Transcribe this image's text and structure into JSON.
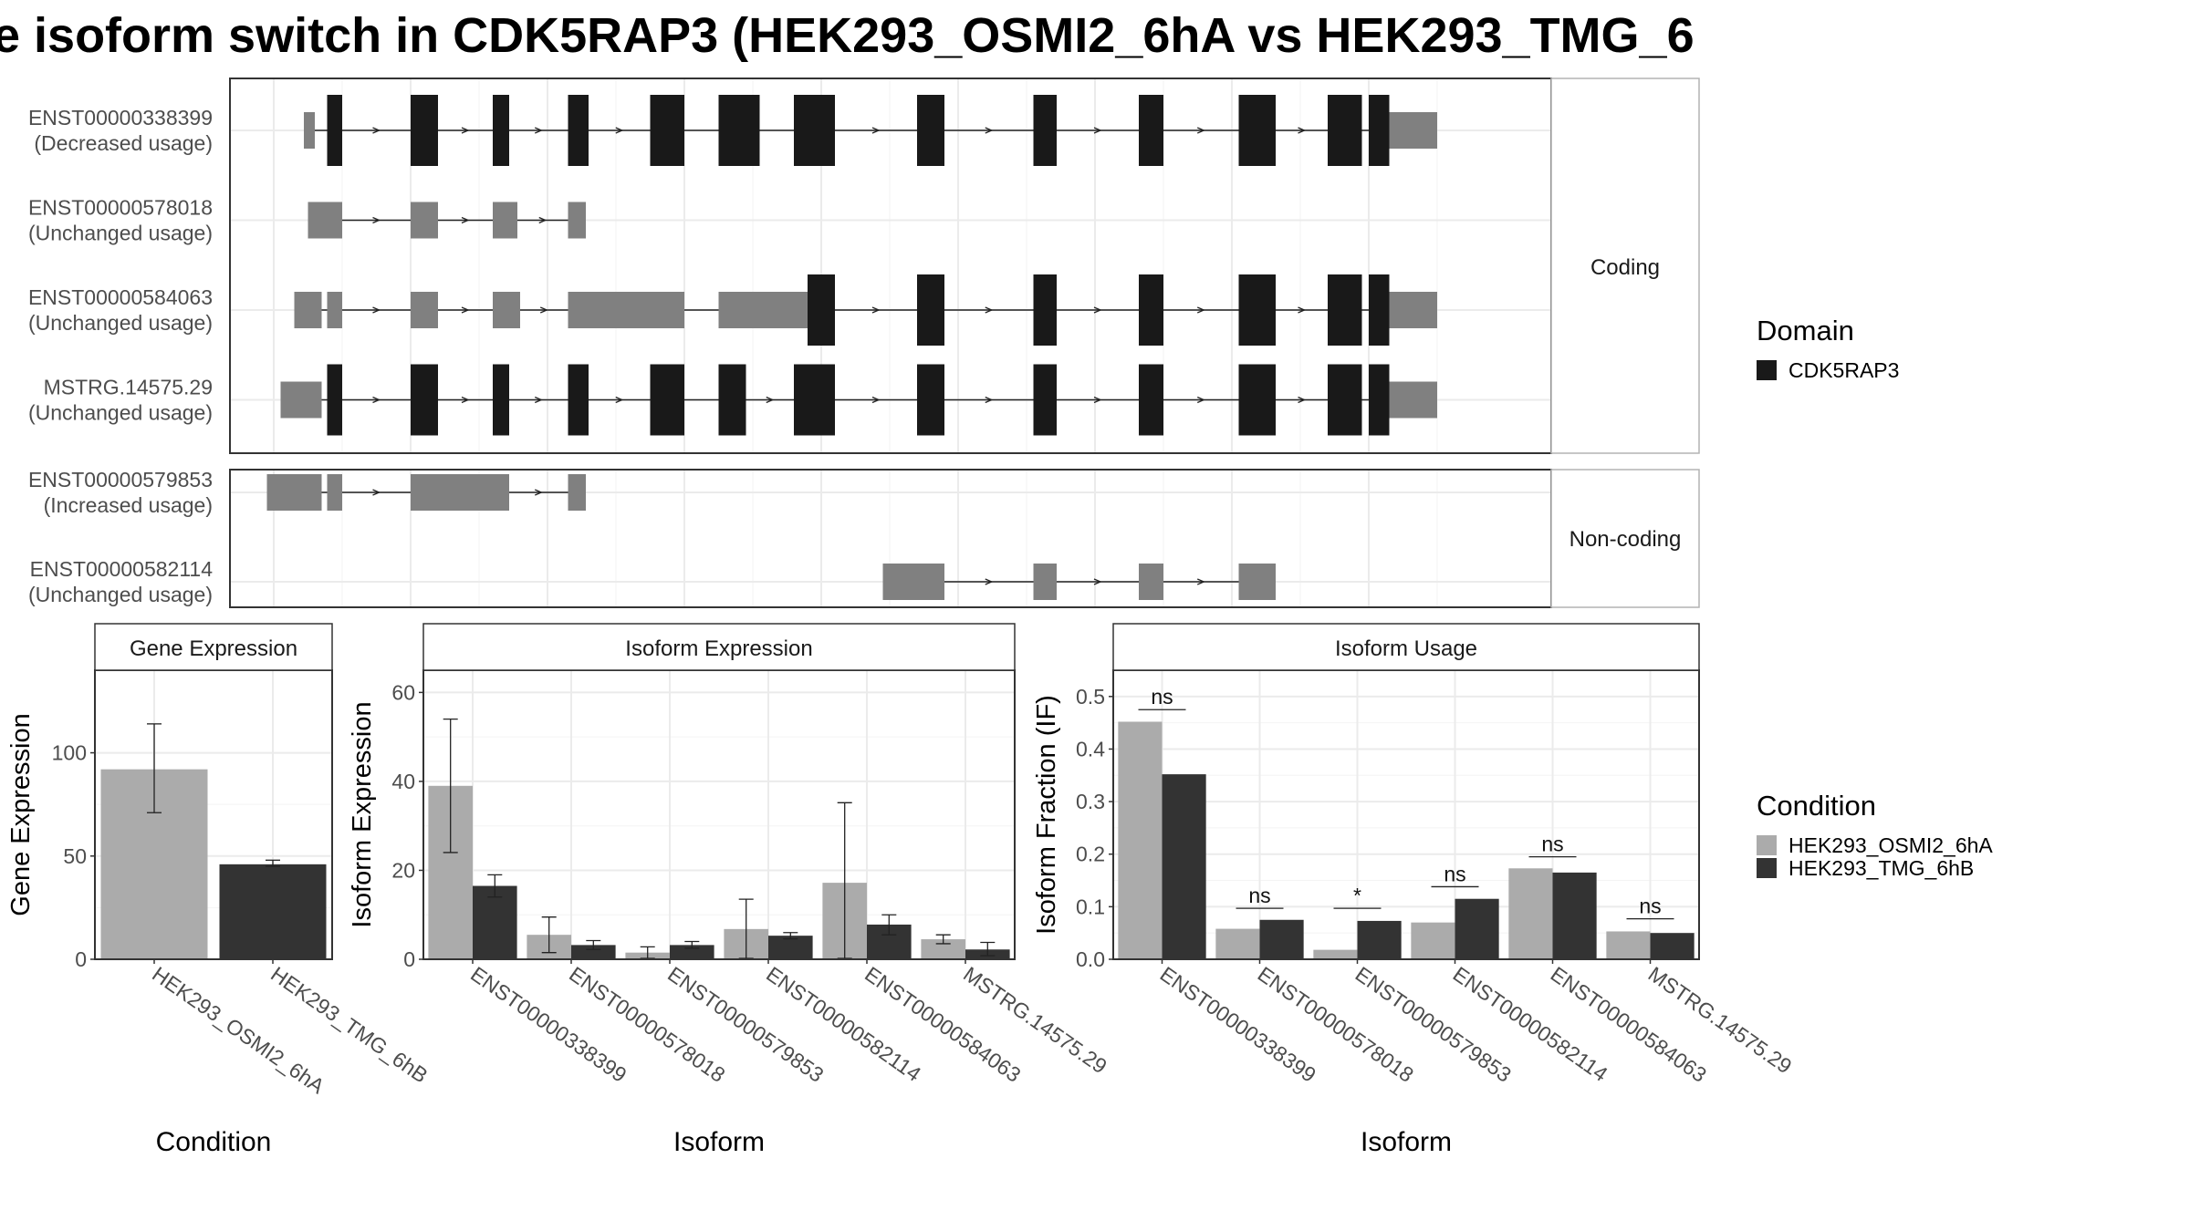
{
  "title": "e isoform switch in CDK5RAP3 (HEK293_OSMI2_6hA vs HEK293_TMG_6",
  "structure": {
    "coding_label": "Coding",
    "noncoding_label": "Non-coding",
    "legend_title": "Domain",
    "legend_item": "CDK5RAP3",
    "transcripts": [
      {
        "id": "ENST00000338399",
        "usage": "(Decreased usage)",
        "group": "Coding",
        "exons": [
          [
            0.22,
            0.28,
            "utr"
          ],
          [
            0.28,
            0.3,
            "utr"
          ],
          [
            0.39,
            0.5,
            "cds"
          ],
          [
            1.0,
            1.2,
            "cds"
          ],
          [
            1.6,
            1.72,
            "cds"
          ],
          [
            2.15,
            2.3,
            "cds"
          ],
          [
            2.75,
            3.0,
            "cds"
          ],
          [
            3.25,
            3.55,
            "cds"
          ],
          [
            3.8,
            4.1,
            "cds"
          ],
          [
            4.7,
            4.9,
            "cds"
          ],
          [
            5.55,
            5.72,
            "cds"
          ],
          [
            6.32,
            6.5,
            "cds"
          ],
          [
            7.05,
            7.32,
            "cds"
          ],
          [
            7.7,
            7.95,
            "cds"
          ],
          [
            8.0,
            8.15,
            "cds"
          ],
          [
            8.15,
            8.5,
            "utr"
          ]
        ]
      },
      {
        "id": "ENST00000578018",
        "usage": "(Unchanged usage)",
        "group": "Coding",
        "exons": [
          [
            0.25,
            0.5,
            "utr"
          ],
          [
            1.0,
            1.2,
            "utr"
          ],
          [
            1.6,
            1.78,
            "utr"
          ],
          [
            2.15,
            2.28,
            "utr"
          ]
        ]
      },
      {
        "id": "ENST00000584063",
        "usage": "(Unchanged usage)",
        "group": "Coding",
        "exons": [
          [
            0.15,
            0.35,
            "utr"
          ],
          [
            0.39,
            0.5,
            "utr"
          ],
          [
            1.0,
            1.2,
            "utr"
          ],
          [
            1.6,
            1.8,
            "utr"
          ],
          [
            2.15,
            3.0,
            "utr"
          ],
          [
            3.25,
            3.9,
            "utr"
          ],
          [
            3.9,
            4.1,
            "cds"
          ],
          [
            4.7,
            4.9,
            "cds"
          ],
          [
            5.55,
            5.72,
            "cds"
          ],
          [
            6.32,
            6.5,
            "cds"
          ],
          [
            7.05,
            7.32,
            "cds"
          ],
          [
            7.7,
            7.95,
            "cds"
          ],
          [
            8.0,
            8.15,
            "cds"
          ],
          [
            8.15,
            8.5,
            "utr"
          ]
        ]
      },
      {
        "id": "MSTRG.14575.29",
        "usage": "(Unchanged usage)",
        "group": "Coding",
        "exons": [
          [
            0.05,
            0.35,
            "utr"
          ],
          [
            0.39,
            0.5,
            "cds"
          ],
          [
            1.0,
            1.2,
            "cds"
          ],
          [
            1.6,
            1.72,
            "cds"
          ],
          [
            2.15,
            2.3,
            "cds"
          ],
          [
            2.75,
            3.0,
            "cds"
          ],
          [
            3.25,
            3.45,
            "cds"
          ],
          [
            3.8,
            4.1,
            "cds"
          ],
          [
            4.7,
            4.9,
            "cds"
          ],
          [
            5.55,
            5.72,
            "cds"
          ],
          [
            6.32,
            6.5,
            "cds"
          ],
          [
            7.05,
            7.32,
            "cds"
          ],
          [
            7.7,
            7.95,
            "cds"
          ],
          [
            8.0,
            8.15,
            "cds"
          ],
          [
            8.15,
            8.5,
            "utr"
          ]
        ]
      },
      {
        "id": "ENST00000579853",
        "usage": "(Increased usage)",
        "group": "Non-coding",
        "exons": [
          [
            -0.05,
            0.35,
            "utr"
          ],
          [
            0.39,
            0.5,
            "utr"
          ],
          [
            1.0,
            1.72,
            "utr"
          ],
          [
            2.15,
            2.28,
            "utr"
          ]
        ]
      },
      {
        "id": "ENST00000582114",
        "usage": "(Unchanged usage)",
        "group": "Non-coding",
        "exons": [
          [
            4.45,
            4.9,
            "utr"
          ],
          [
            5.55,
            5.72,
            "utr"
          ],
          [
            6.32,
            6.5,
            "utr"
          ],
          [
            7.05,
            7.32,
            "utr"
          ]
        ]
      }
    ]
  },
  "colors": {
    "light": "#ababab",
    "dark": "#333333",
    "coding": "#191919",
    "utr": "#808080"
  },
  "chart_data": [
    {
      "type": "bar",
      "title": "Gene Expression",
      "xlabel": "Condition",
      "ylabel": "Gene Expression",
      "ylim": [
        0,
        140
      ],
      "yticks": [
        0,
        50,
        100
      ],
      "categories": [
        "HEK293_OSMI2_6hA",
        "HEK293_TMG_6hB"
      ],
      "values": [
        92,
        46
      ],
      "errors": [
        [
          71,
          114
        ],
        [
          45,
          48
        ]
      ]
    },
    {
      "type": "bar",
      "title": "Isoform Expression",
      "xlabel": "Isoform",
      "ylabel": "Isoform Expression",
      "ylim": [
        0,
        65
      ],
      "yticks": [
        0,
        20,
        40,
        60
      ],
      "categories": [
        "ENST00000338399",
        "ENST00000578018",
        "ENST00000579853",
        "ENST00000582114",
        "ENST00000584063",
        "MSTRG.14575.29"
      ],
      "series": [
        {
          "name": "HEK293_OSMI2_6hA",
          "values": [
            39,
            5.5,
            1.5,
            6.8,
            17.2,
            4.5
          ],
          "errors": [
            [
              24,
              54
            ],
            [
              1.5,
              9.5
            ],
            [
              0.2,
              2.8
            ],
            [
              0.2,
              13.5
            ],
            [
              0.2,
              35.2
            ],
            [
              3.5,
              5.5
            ]
          ]
        },
        {
          "name": "HEK293_TMG_6hB",
          "values": [
            16.5,
            3.2,
            3.2,
            5.3,
            7.8,
            2.2
          ],
          "errors": [
            [
              14,
              19
            ],
            [
              2.2,
              4.2
            ],
            [
              2.5,
              4.0
            ],
            [
              4.6,
              6.0
            ],
            [
              5.5,
              10.0
            ],
            [
              0.8,
              3.8
            ]
          ]
        }
      ]
    },
    {
      "type": "bar",
      "title": "Isoform Usage",
      "xlabel": "Isoform",
      "ylabel": "Isoform Fraction (IF)",
      "ylim": [
        0,
        0.55
      ],
      "yticks": [
        0.0,
        0.1,
        0.2,
        0.3,
        0.4,
        0.5
      ],
      "categories": [
        "ENST00000338399",
        "ENST00000578018",
        "ENST00000579853",
        "ENST00000582114",
        "ENST00000584063",
        "MSTRG.14575.29"
      ],
      "series": [
        {
          "name": "HEK293_OSMI2_6hA",
          "values": [
            0.452,
            0.058,
            0.018,
            0.07,
            0.173,
            0.053
          ]
        },
        {
          "name": "HEK293_TMG_6hB",
          "values": [
            0.352,
            0.075,
            0.073,
            0.115,
            0.165,
            0.05
          ]
        }
      ],
      "significance": [
        "ns",
        "ns",
        "*",
        "ns",
        "ns",
        "ns"
      ],
      "sig_level": [
        0.475,
        0.097,
        0.097,
        0.138,
        0.195,
        0.077
      ]
    }
  ],
  "condition_legend": {
    "title": "Condition",
    "items": [
      "HEK293_OSMI2_6hA",
      "HEK293_TMG_6hB"
    ]
  }
}
